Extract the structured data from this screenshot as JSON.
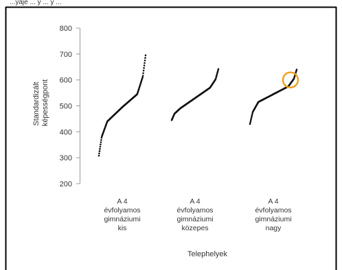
{
  "header_fragment": "...yaje ... y ... y ...",
  "chart_data": {
    "type": "scatter",
    "title": "",
    "xlabel": "Telephelyek",
    "ylabel": "Standardizált képességpont",
    "ylim": [
      200,
      800
    ],
    "yticks": [
      200,
      300,
      400,
      500,
      600,
      700,
      800
    ],
    "grid": false,
    "legend": "none",
    "point_color": "#111111",
    "highlight_color": "#f0a020",
    "categories": [
      [
        "A 4",
        "évfolyamos",
        "gimnáziumi",
        "kis"
      ],
      [
        "A 4",
        "évfolyamos",
        "gimnáziumi",
        "közepes"
      ],
      [
        "A 4",
        "évfolyamos",
        "gimnáziumi",
        "nagy"
      ]
    ],
    "series": [
      {
        "category": 0,
        "min": 308,
        "q1": 440,
        "median": 495,
        "q3": 545,
        "max": 695
      },
      {
        "category": 1,
        "min": 445,
        "q1": 490,
        "median": 530,
        "q3": 570,
        "max": 642
      },
      {
        "category": 2,
        "min": 430,
        "q1": 515,
        "median": 545,
        "q3": 575,
        "max": 640
      }
    ],
    "highlight": {
      "category": 2,
      "y": 600
    }
  }
}
